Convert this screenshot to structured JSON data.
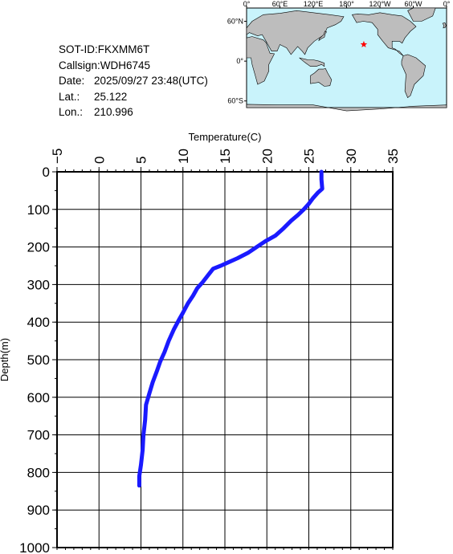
{
  "info": {
    "sot_id": "SOT-ID:FKXMM6T",
    "callsign": "Callsign:WDH6745",
    "date_label": "Date:",
    "date_value": "2025/09/27 23:48(UTC)",
    "lat_label": "Lat.:",
    "lat_value": "25.122",
    "lon_label": "Lon.:",
    "lon_value": "210.996"
  },
  "map": {
    "top_labels": [
      "0°",
      "60°E",
      "120°E",
      "180°",
      "120°W",
      "60°W",
      "0°"
    ],
    "side_labels": [
      "60°N",
      "0°",
      "60°S"
    ],
    "ocean_color": "#c9f3fb",
    "land_color": "#bdbdbd",
    "marker_color": "#ff0000",
    "marker_lon": 210.996,
    "marker_lat": 25.122
  },
  "chart_data": {
    "type": "line",
    "title": "",
    "xlabel": "Temperature(C)",
    "ylabel": "Depth(m)",
    "xlim": [
      -5,
      35
    ],
    "ylim": [
      0,
      1000
    ],
    "y_inverted": true,
    "x_ticks": [
      -5,
      0,
      5,
      10,
      15,
      20,
      25,
      30,
      35
    ],
    "y_ticks": [
      0,
      100,
      200,
      300,
      400,
      500,
      600,
      700,
      800,
      900,
      1000
    ],
    "grid": true,
    "line_color": "#1a1aff",
    "series": [
      {
        "name": "",
        "points": [
          [
            26.5,
            0
          ],
          [
            26.5,
            20
          ],
          [
            26.6,
            45
          ],
          [
            26.1,
            55
          ],
          [
            25.5,
            70
          ],
          [
            25.0,
            85
          ],
          [
            24.4,
            100
          ],
          [
            23.7,
            115
          ],
          [
            22.9,
            130
          ],
          [
            22.0,
            150
          ],
          [
            21.0,
            170
          ],
          [
            19.8,
            185
          ],
          [
            18.8,
            200
          ],
          [
            17.8,
            215
          ],
          [
            16.5,
            230
          ],
          [
            15.5,
            240
          ],
          [
            14.5,
            250
          ],
          [
            13.6,
            258
          ],
          [
            13.0,
            275
          ],
          [
            12.3,
            295
          ],
          [
            11.7,
            310
          ],
          [
            11.2,
            330
          ],
          [
            10.6,
            350
          ],
          [
            10.0,
            375
          ],
          [
            9.5,
            395
          ],
          [
            8.9,
            420
          ],
          [
            8.3,
            450
          ],
          [
            7.8,
            480
          ],
          [
            7.3,
            505
          ],
          [
            6.9,
            530
          ],
          [
            6.4,
            560
          ],
          [
            6.0,
            590
          ],
          [
            5.6,
            620
          ],
          [
            5.5,
            660
          ],
          [
            5.3,
            700
          ],
          [
            5.2,
            740
          ],
          [
            5.0,
            780
          ],
          [
            4.8,
            810
          ],
          [
            4.8,
            835
          ]
        ]
      }
    ]
  }
}
